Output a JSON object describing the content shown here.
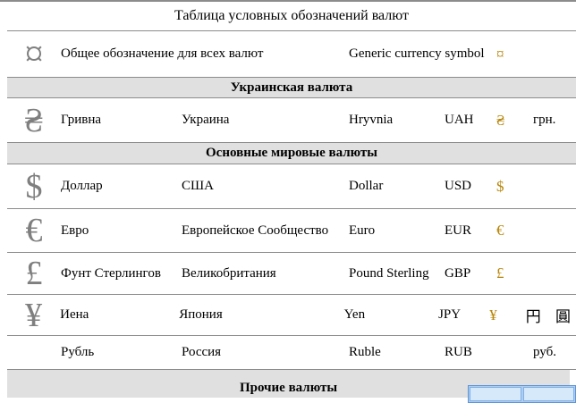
{
  "title": "Таблица условных обозначений валют",
  "generic_row": {
    "symbol": "¤",
    "description": "Общее обозначение для всех валют",
    "english": "Generic currency symbol",
    "gold_symbol": "¤"
  },
  "sections": {
    "ukrainian": "Украинская валюта",
    "world": "Основные мировые валюты",
    "other": "Прочие валюты"
  },
  "rows": [
    {
      "symbol": "₴",
      "name": "Гривна",
      "country": "Украина",
      "english": "Hryvnia",
      "code": "UAH",
      "gold_symbol": "₴",
      "extra": "грн."
    },
    {
      "symbol": "$",
      "name": "Доллар",
      "country": "США",
      "english": "Dollar",
      "code": "USD",
      "gold_symbol": "$",
      "extra": ""
    },
    {
      "symbol": "€",
      "name": "Евро",
      "country": "Европейское Сообщество",
      "english": "Euro",
      "code": "EUR",
      "gold_symbol": "€",
      "extra": ""
    },
    {
      "symbol": "£",
      "name": "Фунт Стерлингов",
      "country": "Великобритания",
      "english": "Pound Sterling",
      "code": "GBP",
      "gold_symbol": "£",
      "extra": ""
    },
    {
      "symbol": "¥",
      "name": "Иена",
      "country": "Япония",
      "english": "Yen",
      "code": "JPY",
      "gold_symbol": "¥",
      "extra": "円 圓"
    },
    {
      "symbol": "",
      "name": "Рубль",
      "country": "Россия",
      "english": "Ruble",
      "code": "RUB",
      "gold_symbol": "",
      "extra": "руб."
    }
  ],
  "colors": {
    "gold_accent": "#B8860B",
    "symbol_gray": "#7F7F7F",
    "band_background": "#E0E0E0",
    "border_gray": "#8C8C8C",
    "popup_border": "#5E94D6",
    "popup_fill": "#D6E9FB"
  }
}
